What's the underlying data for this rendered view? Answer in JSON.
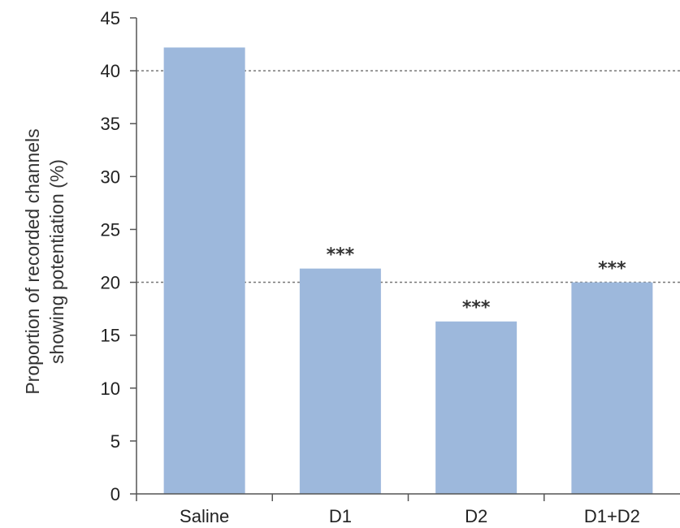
{
  "chart_data": {
    "type": "bar",
    "categories": [
      "Saline",
      "D1",
      "D2",
      "D1+D2"
    ],
    "values": [
      42.2,
      21.3,
      16.3,
      20.0
    ],
    "annotations": [
      "",
      "***",
      "***",
      "***"
    ],
    "title": "",
    "xlabel": "",
    "ylabel_lines": [
      "Proportion of recorded channels",
      "showing potentiation  (%)"
    ],
    "ylim": [
      0,
      45
    ],
    "yticks": [
      0,
      5,
      10,
      15,
      20,
      25,
      30,
      35,
      40,
      45
    ],
    "reference_lines": [
      20,
      40
    ],
    "grid": false,
    "legend": "none",
    "colors": {
      "bar": "#9db8dc",
      "axis": "#555555",
      "reference_line": "#777777"
    }
  }
}
